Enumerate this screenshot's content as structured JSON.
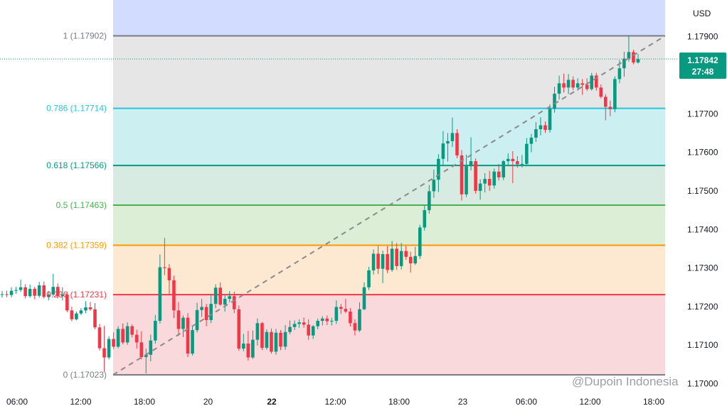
{
  "chart_data": {
    "type": "candlestick",
    "currency": "USD",
    "y_range": [
      1.1699,
      1.17995
    ],
    "y_ticks": [
      "1.17900",
      "1.17800",
      "1.17700",
      "1.17600",
      "1.17500",
      "1.17400",
      "1.17300",
      "1.17200",
      "1.17100",
      "1.17000"
    ],
    "x_ticks": [
      {
        "label": "06:00",
        "bold": false
      },
      {
        "label": "12:00",
        "bold": false
      },
      {
        "label": "18:00",
        "bold": false
      },
      {
        "label": "20",
        "bold": false
      },
      {
        "label": "22",
        "bold": true
      },
      {
        "label": "12:00",
        "bold": false
      },
      {
        "label": "18:00",
        "bold": false
      },
      {
        "label": "23",
        "bold": false
      },
      {
        "label": "06:00",
        "bold": false
      },
      {
        "label": "12:00",
        "bold": false
      },
      {
        "label": "18:00",
        "bold": false
      }
    ],
    "fib_levels": [
      {
        "ratio": 1,
        "price": 1.17902,
        "label": "1 (1.17902)",
        "color": "#787b86",
        "fill": null
      },
      {
        "ratio": 0.786,
        "price": 1.17714,
        "label": "0.786 (1.17714)",
        "color": "#26c6da",
        "fill": "#e6e6e6"
      },
      {
        "ratio": 0.618,
        "price": 1.17566,
        "label": "0.618 (1.17566)",
        "color": "#089981",
        "fill": "#ccf0f2"
      },
      {
        "ratio": 0.5,
        "price": 1.17463,
        "label": "0.5 (1.17463)",
        "color": "#4caf50",
        "fill": "#d7ebe3"
      },
      {
        "ratio": 0.382,
        "price": 1.17359,
        "label": "0.382 (1.17359)",
        "color": "#ff9800",
        "fill": "#dcefd6"
      },
      {
        "ratio": 0.236,
        "price": 1.17231,
        "label": "0.236 (1.17231)",
        "color": "#f23645",
        "fill": "#fde9d2"
      },
      {
        "ratio": 0,
        "price": 1.17023,
        "label": "0 (1.17023)",
        "color": "#787b86",
        "fill": "#f9d9dc"
      }
    ],
    "top_zone_color": "#d2dcff",
    "trend_line": {
      "from": 1.17023,
      "to": 1.17902,
      "style": "dashed"
    },
    "current_price": {
      "value": "1.17842",
      "countdown": "27:48",
      "price": 1.17842,
      "color": "#089981"
    },
    "up_color": "#089981",
    "down_color": "#f23645",
    "candles": [
      [
        1.17232,
        1.1724,
        1.17223,
        1.17232
      ],
      [
        1.17232,
        1.17241,
        1.17224,
        1.1723
      ],
      [
        1.1723,
        1.1725,
        1.17224,
        1.17241
      ],
      [
        1.17241,
        1.17251,
        1.17233,
        1.17243
      ],
      [
        1.17243,
        1.1727,
        1.17238,
        1.1725
      ],
      [
        1.1725,
        1.17258,
        1.17221,
        1.17227
      ],
      [
        1.17227,
        1.17257,
        1.17223,
        1.17246
      ],
      [
        1.17246,
        1.17251,
        1.17219,
        1.17228
      ],
      [
        1.17228,
        1.17264,
        1.17223,
        1.17255
      ],
      [
        1.17255,
        1.17265,
        1.17221,
        1.17225
      ],
      [
        1.17225,
        1.1724,
        1.17216,
        1.17231
      ],
      [
        1.17231,
        1.17285,
        1.17227,
        1.17251
      ],
      [
        1.17251,
        1.1726,
        1.17221,
        1.17227
      ],
      [
        1.17227,
        1.1725,
        1.17216,
        1.17231
      ],
      [
        1.17231,
        1.17238,
        1.17185,
        1.1719
      ],
      [
        1.1719,
        1.172,
        1.17162,
        1.17167
      ],
      [
        1.17167,
        1.17187,
        1.17164,
        1.17182
      ],
      [
        1.17182,
        1.17196,
        1.17178,
        1.1719
      ],
      [
        1.1719,
        1.17214,
        1.17183,
        1.17198
      ],
      [
        1.17198,
        1.17212,
        1.17189,
        1.17193
      ],
      [
        1.17193,
        1.17209,
        1.17141,
        1.17146
      ],
      [
        1.17146,
        1.17155,
        1.17086,
        1.17092
      ],
      [
        1.17092,
        1.1715,
        1.17031,
        1.17068
      ],
      [
        1.17068,
        1.17123,
        1.17063,
        1.17116
      ],
      [
        1.17116,
        1.17133,
        1.1709,
        1.17096
      ],
      [
        1.17096,
        1.17149,
        1.17092,
        1.17142
      ],
      [
        1.17142,
        1.17156,
        1.17102,
        1.17107
      ],
      [
        1.17107,
        1.17159,
        1.17101,
        1.17149
      ],
      [
        1.17149,
        1.17154,
        1.1712,
        1.17127
      ],
      [
        1.17127,
        1.1714,
        1.17091,
        1.17107
      ],
      [
        1.17107,
        1.17136,
        1.17063,
        1.17069
      ],
      [
        1.17069,
        1.17091,
        1.17027,
        1.17075
      ],
      [
        1.17075,
        1.17127,
        1.17058,
        1.17112
      ],
      [
        1.17112,
        1.17178,
        1.17104,
        1.17163
      ],
      [
        1.17163,
        1.17335,
        1.17156,
        1.17302
      ],
      [
        1.17302,
        1.17378,
        1.17281,
        1.173
      ],
      [
        1.173,
        1.1731,
        1.1723,
        1.17268
      ],
      [
        1.17268,
        1.1728,
        1.1717,
        1.1719
      ],
      [
        1.1719,
        1.17212,
        1.17124,
        1.17142
      ],
      [
        1.17142,
        1.17177,
        1.17121,
        1.17171
      ],
      [
        1.17171,
        1.17183,
        1.17069,
        1.17078
      ],
      [
        1.17078,
        1.17151,
        1.17073,
        1.17139
      ],
      [
        1.17139,
        1.1721,
        1.17133,
        1.17191
      ],
      [
        1.17191,
        1.1722,
        1.17173,
        1.17199
      ],
      [
        1.17199,
        1.17207,
        1.17149,
        1.17165
      ],
      [
        1.17165,
        1.17229,
        1.17157,
        1.17207
      ],
      [
        1.17207,
        1.17258,
        1.17196,
        1.17249
      ],
      [
        1.17249,
        1.17263,
        1.17202,
        1.17205
      ],
      [
        1.17205,
        1.17229,
        1.17187,
        1.1722
      ],
      [
        1.1722,
        1.1724,
        1.17211,
        1.17227
      ],
      [
        1.17227,
        1.17239,
        1.17183,
        1.17193
      ],
      [
        1.17193,
        1.17203,
        1.17085,
        1.17091
      ],
      [
        1.17091,
        1.17129,
        1.17084,
        1.17104
      ],
      [
        1.17104,
        1.17137,
        1.1706,
        1.17068
      ],
      [
        1.17068,
        1.17138,
        1.17064,
        1.17114
      ],
      [
        1.17114,
        1.17169,
        1.17099,
        1.17157
      ],
      [
        1.17157,
        1.1716,
        1.17087,
        1.17093
      ],
      [
        1.17093,
        1.17141,
        1.17088,
        1.17134
      ],
      [
        1.17134,
        1.17143,
        1.17078,
        1.17083
      ],
      [
        1.17083,
        1.17142,
        1.17075,
        1.17132
      ],
      [
        1.17132,
        1.17139,
        1.17087,
        1.17096
      ],
      [
        1.17096,
        1.17152,
        1.17088,
        1.17134
      ],
      [
        1.17134,
        1.17164,
        1.17128,
        1.17147
      ],
      [
        1.17147,
        1.17164,
        1.17139,
        1.17155
      ],
      [
        1.17155,
        1.17167,
        1.17145,
        1.17159
      ],
      [
        1.17159,
        1.17172,
        1.17145,
        1.17153
      ],
      [
        1.17153,
        1.17167,
        1.17114,
        1.17125
      ],
      [
        1.17125,
        1.17152,
        1.17116,
        1.17149
      ],
      [
        1.17149,
        1.17169,
        1.17141,
        1.17163
      ],
      [
        1.17163,
        1.17175,
        1.17151,
        1.17169
      ],
      [
        1.17169,
        1.17177,
        1.17152,
        1.17162
      ],
      [
        1.17162,
        1.17171,
        1.17151,
        1.17163
      ],
      [
        1.17163,
        1.17216,
        1.17155,
        1.17199
      ],
      [
        1.17199,
        1.17207,
        1.17181,
        1.17194
      ],
      [
        1.17194,
        1.1722,
        1.17183,
        1.17187
      ],
      [
        1.17187,
        1.17196,
        1.17148,
        1.17157
      ],
      [
        1.17157,
        1.17167,
        1.17125,
        1.17138
      ],
      [
        1.17138,
        1.17211,
        1.17134,
        1.17193
      ],
      [
        1.17193,
        1.17263,
        1.17191,
        1.1725
      ],
      [
        1.1725,
        1.17303,
        1.17243,
        1.17294
      ],
      [
        1.17294,
        1.17348,
        1.17283,
        1.17337
      ],
      [
        1.17337,
        1.17358,
        1.17284,
        1.17298
      ],
      [
        1.17298,
        1.17345,
        1.17261,
        1.17336
      ],
      [
        1.17336,
        1.17357,
        1.17287,
        1.17295
      ],
      [
        1.17295,
        1.1737,
        1.1729,
        1.1735
      ],
      [
        1.1735,
        1.17365,
        1.17295,
        1.17305
      ],
      [
        1.17305,
        1.17365,
        1.17296,
        1.17344
      ],
      [
        1.17344,
        1.17357,
        1.17321,
        1.17329
      ],
      [
        1.17329,
        1.17342,
        1.17288,
        1.17312
      ],
      [
        1.17312,
        1.17355,
        1.17308,
        1.17331
      ],
      [
        1.17331,
        1.17412,
        1.17324,
        1.17405
      ],
      [
        1.17405,
        1.17462,
        1.17397,
        1.1745
      ],
      [
        1.1745,
        1.17515,
        1.17441,
        1.17499
      ],
      [
        1.17499,
        1.17555,
        1.17482,
        1.17529
      ],
      [
        1.17529,
        1.17595,
        1.17497,
        1.17583
      ],
      [
        1.17583,
        1.17655,
        1.17567,
        1.17623
      ],
      [
        1.17623,
        1.1765,
        1.17576,
        1.17629
      ],
      [
        1.17629,
        1.1769,
        1.17614,
        1.1765
      ],
      [
        1.1765,
        1.1766,
        1.17585,
        1.17592
      ],
      [
        1.17592,
        1.17606,
        1.17475,
        1.17491
      ],
      [
        1.17491,
        1.17594,
        1.17484,
        1.17564
      ],
      [
        1.17564,
        1.17639,
        1.17553,
        1.17577
      ],
      [
        1.17577,
        1.17584,
        1.17493,
        1.175
      ],
      [
        1.175,
        1.1753,
        1.17477,
        1.17519
      ],
      [
        1.17519,
        1.17546,
        1.17496,
        1.17531
      ],
      [
        1.17531,
        1.17552,
        1.175,
        1.17514
      ],
      [
        1.17514,
        1.17558,
        1.17506,
        1.1755
      ],
      [
        1.1755,
        1.1757,
        1.17527,
        1.17535
      ],
      [
        1.17535,
        1.1758,
        1.17528,
        1.17577
      ],
      [
        1.17577,
        1.17597,
        1.17565,
        1.17583
      ],
      [
        1.17583,
        1.17603,
        1.1752,
        1.17577
      ],
      [
        1.17577,
        1.1759,
        1.1756,
        1.17569
      ],
      [
        1.17569,
        1.17593,
        1.17561,
        1.1757
      ],
      [
        1.1757,
        1.17637,
        1.17564,
        1.17622
      ],
      [
        1.17622,
        1.17648,
        1.176,
        1.17638
      ],
      [
        1.17638,
        1.17678,
        1.17627,
        1.1766
      ],
      [
        1.1766,
        1.17691,
        1.17644,
        1.1767
      ],
      [
        1.1767,
        1.1768,
        1.1765,
        1.17658
      ],
      [
        1.17658,
        1.17724,
        1.17651,
        1.17713
      ],
      [
        1.17713,
        1.1777,
        1.17703,
        1.17752
      ],
      [
        1.17752,
        1.17799,
        1.17737,
        1.17779
      ],
      [
        1.17779,
        1.17804,
        1.17755,
        1.17768
      ],
      [
        1.17768,
        1.17803,
        1.17751,
        1.17788
      ],
      [
        1.17788,
        1.17797,
        1.17761,
        1.17768
      ],
      [
        1.17768,
        1.17792,
        1.1776,
        1.17779
      ],
      [
        1.17779,
        1.1779,
        1.17749,
        1.17775
      ],
      [
        1.17775,
        1.17792,
        1.17759,
        1.17764
      ],
      [
        1.17764,
        1.17806,
        1.1776,
        1.17799
      ],
      [
        1.17799,
        1.17806,
        1.1776,
        1.17768
      ],
      [
        1.17768,
        1.17776,
        1.1774,
        1.17744
      ],
      [
        1.17744,
        1.17751,
        1.17683,
        1.17718
      ],
      [
        1.17718,
        1.17734,
        1.17694,
        1.17712
      ],
      [
        1.17712,
        1.17797,
        1.17704,
        1.1779
      ],
      [
        1.1779,
        1.17839,
        1.17779,
        1.17818
      ],
      [
        1.17818,
        1.17861,
        1.17796,
        1.17843
      ],
      [
        1.17843,
        1.17902,
        1.17835,
        1.1786
      ],
      [
        1.1786,
        1.17866,
        1.17828,
        1.17833
      ],
      [
        1.17833,
        1.17855,
        1.1783,
        1.17842
      ]
    ]
  },
  "watermark": "@Dupoin Indonesia"
}
